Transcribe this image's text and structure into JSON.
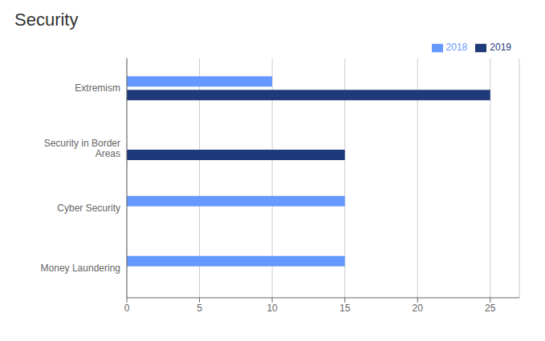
{
  "chart_data": {
    "type": "bar",
    "orientation": "horizontal",
    "title": "Security",
    "categories": [
      "Money Laundering",
      "Cyber Security",
      "Security in Border\nAreas",
      "Extremism"
    ],
    "series": [
      {
        "name": "2018",
        "color": "#6699FF",
        "values": [
          15,
          15,
          0,
          10
        ]
      },
      {
        "name": "2019",
        "color": "#1F3A7A",
        "values": [
          0,
          0,
          15,
          25
        ]
      }
    ],
    "xlim": [
      0,
      27
    ],
    "xticks": [
      0,
      5,
      10,
      15,
      20,
      25
    ],
    "grid": true,
    "legend": "upper right"
  }
}
